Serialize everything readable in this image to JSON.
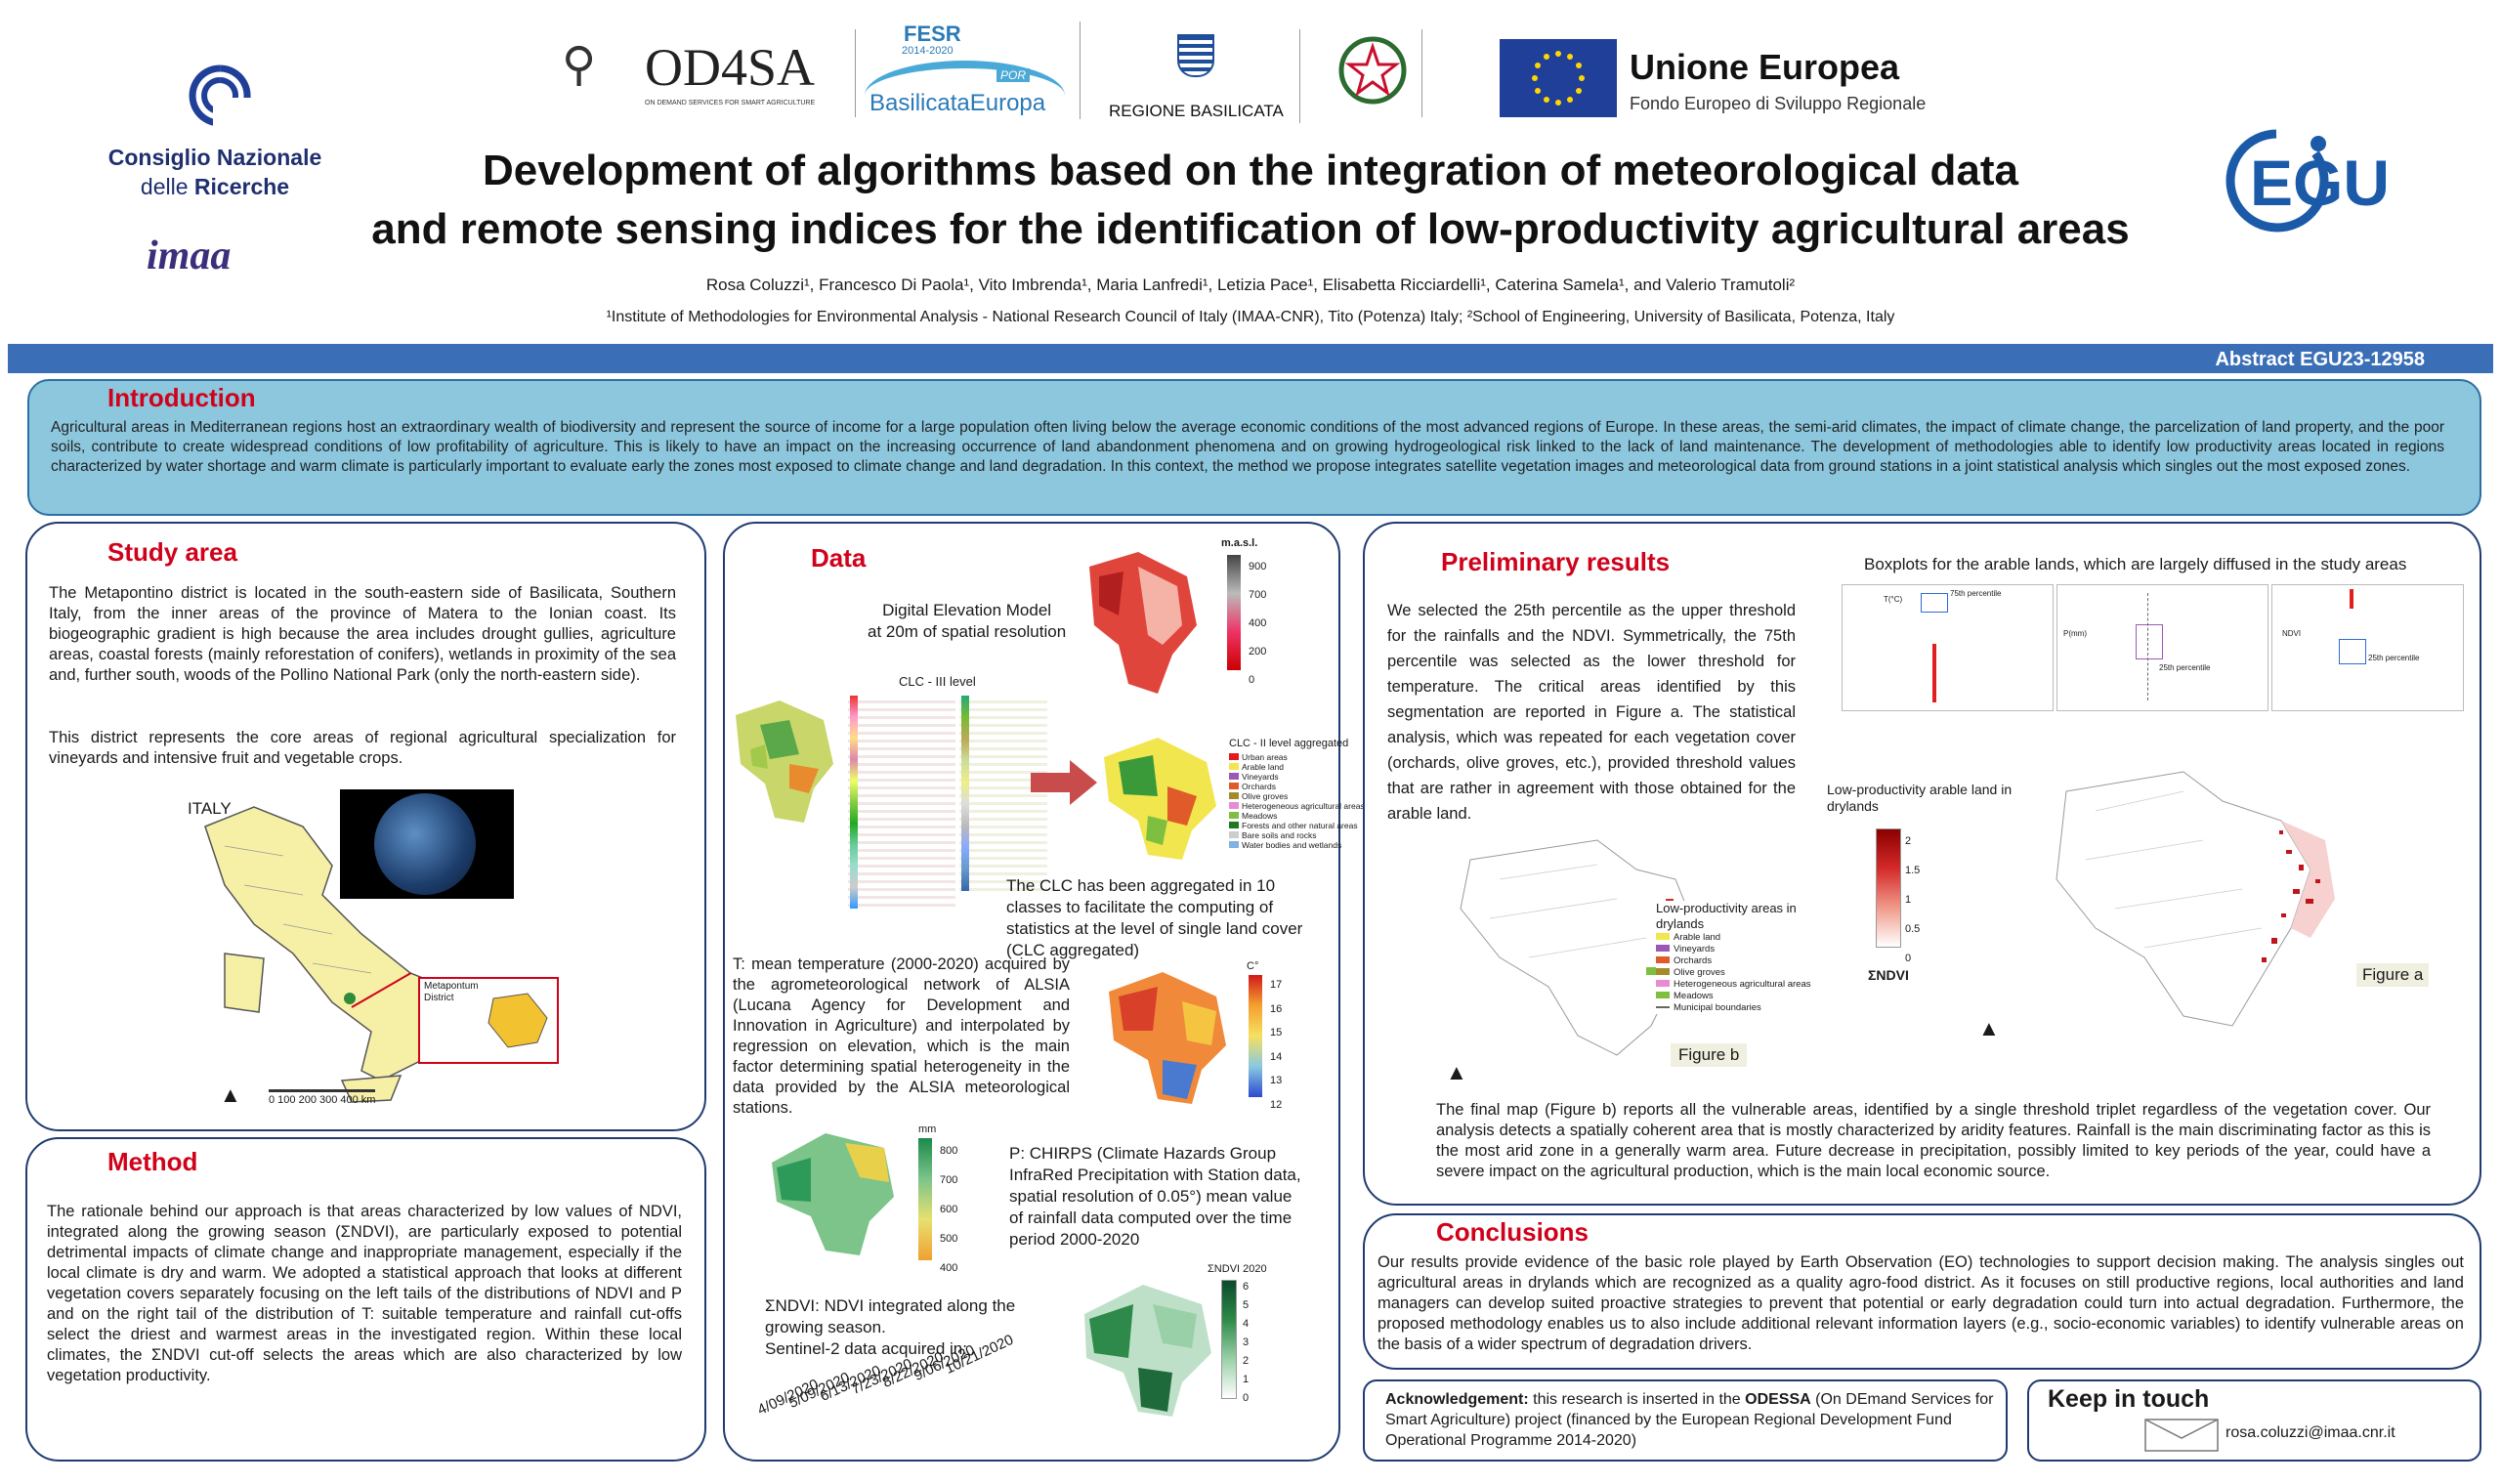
{
  "header": {
    "cnr_name_line1": "Consiglio Nazionale",
    "cnr_name_line2_a": "delle ",
    "cnr_name_line2_b": "Ricerche",
    "imaa": "imaa",
    "od4sa": "OD4SA",
    "od4sa_sub": "ON DEMAND SERVICES FOR SMART AGRICULTURE",
    "fesr_title": "FESR",
    "fesr_years": "2014-2020",
    "fesr_por": "POR",
    "fesr_region": "BasilicataEuropa",
    "regione": "REGIONE BASILICATA",
    "eu_title": "Unione Europea",
    "eu_sub": "Fondo Europeo di Sviluppo Regionale",
    "egu": "EGU",
    "title_line1": "Development of algorithms based on the integration of meteorological data",
    "title_line2": "and remote sensing indices for the identification of low-productivity agricultural areas",
    "authors": "Rosa Coluzzi¹, Francesco Di Paola¹, Vito Imbrenda¹, Maria Lanfredi¹, Letizia Pace¹, Elisabetta Ricciardelli¹, Caterina Samela¹, and Valerio Tramutoli²",
    "affiliations": "¹Institute of Methodologies for Environmental Analysis - National Research Council of Italy (IMAA-CNR), Tito (Potenza) Italy; ²School of Engineering, University of Basilicata, Potenza, Italy",
    "abstract_id": "Abstract EGU23-12958"
  },
  "introduction": {
    "title": "Introduction",
    "text": "Agricultural areas in Mediterranean regions host an extraordinary wealth of biodiversity and represent the source of income for a large population often living below the average economic conditions of the most advanced regions of Europe. In these areas, the semi-arid climates, the impact of climate change, the parcelization of land property, and the poor soils, contribute to create widespread conditions of low profitability of agriculture. This is likely to have an impact on the increasing occurrence of land abandonment phenomena and on growing hydrogeological risk linked to the lack of land maintenance. The development of methodologies able to identify low productivity areas located in regions characterized by water shortage and warm climate is particularly important to evaluate early the zones most exposed to climate change and land degradation. In this context, the method we propose integrates satellite vegetation images and meteorological data from ground stations in a joint statistical analysis which singles out the most exposed zones."
  },
  "study_area": {
    "title": "Study area",
    "text1": "The Metapontino district is located in the south-eastern side of Basilicata, Southern Italy, from the inner areas of the province of Matera to the Ionian coast. Its biogeographic gradient is high because the area includes drought gullies, agriculture areas, coastal forests (mainly reforestation of conifers), wetlands in proximity of the sea and, further south, woods of the Pollino National Park (only the north-eastern side).",
    "text2": "This district represents the core areas of regional agricultural specialization for vineyards and intensive fruit and vegetable crops.",
    "map_label": "ITALY",
    "inset_label_1": "Metapontum",
    "inset_label_2": "District",
    "scale": "0  100  200  300  400 km"
  },
  "method": {
    "title": "Method",
    "text": "The rationale behind our approach is that areas characterized by low values of NDVI, integrated along the growing season (ΣNDVI), are particularly exposed to potential detrimental impacts of climate change and inappropriate management, especially if the local climate is dry and warm. We adopted a statistical approach that looks at different vegetation covers separately focusing on the left tails of the distributions of NDVI and P and on the right tail of the distribution of T: suitable temperature and rainfall cut-offs select the driest and warmest areas in the investigated region. Within these local climates, the ΣNDVI cut-off selects the areas which are also characterized by low vegetation productivity."
  },
  "data": {
    "title": "Data",
    "dem_caption_1": "Digital Elevation Model",
    "dem_caption_2": "at 20m of spatial resolution",
    "dem_unit": "m.a.s.l.",
    "dem_ticks": [
      "900",
      "700",
      "400",
      "200",
      "0"
    ],
    "clc3_label": "CLC - III level",
    "clc2_label": "CLC - II level aggregated",
    "clc2_legend": [
      "Urban areas",
      "Arable land",
      "Vineyards",
      "Orchards",
      "Olive groves",
      "Heterogeneous agricultural areas",
      "Meadows",
      "Forests and other natural areas",
      "Bare soils and rocks",
      "Water bodies and wetlands"
    ],
    "clc_caption": "The CLC has been aggregated in 10 classes to facilitate the computing of statistics at the level of single land cover (CLC aggregated)",
    "t_caption": "T: mean temperature (2000-2020) acquired by the agrometeorological network of ALSIA (Lucana Agency for Development and Innovation in Agriculture) and interpolated by regression on elevation, which is the main factor determining spatial heterogeneity in the data provided by the ALSIA meteorological stations.",
    "t_unit": "C°",
    "t_ticks": [
      "17",
      "16",
      "15",
      "14",
      "13",
      "12"
    ],
    "p_caption": "P: CHIRPS (Climate Hazards Group InfraRed Precipitation with Station data, spatial resolution of 0.05°) mean value of rainfall data computed over the time period 2000-2020",
    "p_unit": "mm",
    "p_ticks": [
      "800",
      "700",
      "600",
      "500",
      "400"
    ],
    "ndvi_caption_1": "ΣNDVI: NDVI integrated along the",
    "ndvi_caption_2": "growing season.",
    "ndvi_caption_3": "Sentinel-2 data acquired in:",
    "ndvi_unit": "ΣNDVI 2020",
    "ndvi_ticks": [
      "6",
      "5",
      "4",
      "3",
      "2",
      "1",
      "0"
    ],
    "dates": [
      "4/09/2020",
      "5/09/2020",
      "6/13/2020",
      "7/23/2020",
      "8/22/2020",
      "9/06/2020",
      "10/21/2020"
    ]
  },
  "results": {
    "title": "Preliminary results",
    "text": "We selected the 25th percentile as the upper threshold for the rainfalls and the NDVI. Symmetrically, the 75th percentile was selected as the lower threshold for temperature. The critical areas identified by this segmentation are reported in Figure a. The statistical analysis, which was repeated for each vegetation cover (orchards, olive groves, etc.), provided threshold values that are rather in agreement with those obtained for the arable land.",
    "boxplot_title": "Boxplots for the arable lands, which are largely diffused in the study areas",
    "box_labels": [
      "75th percentile",
      "25th percentile",
      "25th percentile"
    ],
    "box_axes": [
      "T(°C)",
      "P(mm)",
      "NDVI"
    ],
    "low_prod_title_1": "Low-productivity arable land in",
    "low_prod_title_2": "drylands",
    "sigma_label": "ΣNDVI",
    "sigma_ticks": [
      "2",
      "1.5",
      "1",
      "0.5",
      "0"
    ],
    "figure_a": "Figure a",
    "figure_b": "Figure b",
    "legend_title_1": "Low-productivity areas in",
    "legend_title_2": "drylands",
    "legend_items": [
      "Arable land",
      "Vineyards",
      "Orchards",
      "Olive groves",
      "Heterogeneous agricultural areas",
      "Meadows",
      "Municipal boundaries"
    ],
    "final_text": "The final map (Figure b) reports all the vulnerable areas, identified by a single threshold triplet regardless of the vegetation cover. Our analysis detects a spatially coherent area that is mostly characterized by aridity features. Rainfall is the main discriminating factor as this is the most arid zone in a generally warm area. Future decrease in precipitation, possibly limited to key periods of the year, could have a severe impact on the agricultural production, which is the main local economic source."
  },
  "conclusions": {
    "title": "Conclusions",
    "text": "Our results provide evidence of the basic role played by Earth Observation (EO) technologies to support decision making. The analysis singles out agricultural areas in drylands which are recognized as a quality agro-food district. As it focuses on still productive regions, local authorities and land managers can develop suited proactive strategies to prevent that potential or early degradation could turn into actual degradation. Furthermore, the proposed methodology enables us to also include additional relevant information layers (e.g., socio-economic variables) to identify vulnerable areas on the basis of a wider spectrum of degradation drivers."
  },
  "acknowledgement": {
    "label": "Acknowledgement:",
    "text_a": " this research is inserted in the ",
    "odessa": "ODESSA",
    "text_b": " (On DEmand Services for Smart Agriculture) project (financed by the European Regional Development Fund Operational Programme 2014-2020)"
  },
  "contact": {
    "title": "Keep in touch",
    "email": "rosa.coluzzi@imaa.cnr.it"
  },
  "colors": {
    "accent_red": "#d0021b",
    "panel_border": "#1f3b70",
    "abstract_bar": "#3a6fb7",
    "intro_bg": "#8cc7de",
    "egu_blue": "#1b5aa8",
    "eu_blue": "#1f3f99"
  }
}
